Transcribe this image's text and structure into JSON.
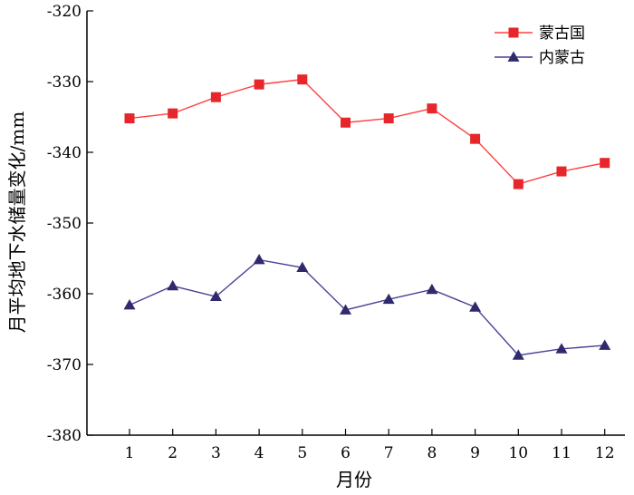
{
  "chart_data": {
    "type": "line",
    "xlabel": "月份",
    "ylabel": "月平均地下水储量变化/mm",
    "categories": [
      "1",
      "2",
      "3",
      "4",
      "5",
      "6",
      "7",
      "8",
      "9",
      "10",
      "11",
      "12"
    ],
    "ylim": [
      -380,
      -320
    ],
    "yticks": [
      -320,
      -330,
      -340,
      -350,
      -360,
      -370,
      -380
    ],
    "grid": false,
    "legend_position": "top-right",
    "series": [
      {
        "name": "蒙古国",
        "marker": "square",
        "color": "#ff4040",
        "marker_color": "#e6262a",
        "values": [
          -335.2,
          -334.5,
          -332.2,
          -330.4,
          -329.7,
          -335.8,
          -335.2,
          -333.8,
          -338.1,
          -344.5,
          -342.7,
          -341.5
        ]
      },
      {
        "name": "内蒙古",
        "marker": "triangle",
        "color": "#4a3f96",
        "marker_color": "#2f2a6b",
        "values": [
          -361.6,
          -358.9,
          -360.4,
          -355.2,
          -356.3,
          -362.3,
          -360.8,
          -359.4,
          -361.9,
          -368.7,
          -367.8,
          -367.3
        ]
      }
    ]
  }
}
